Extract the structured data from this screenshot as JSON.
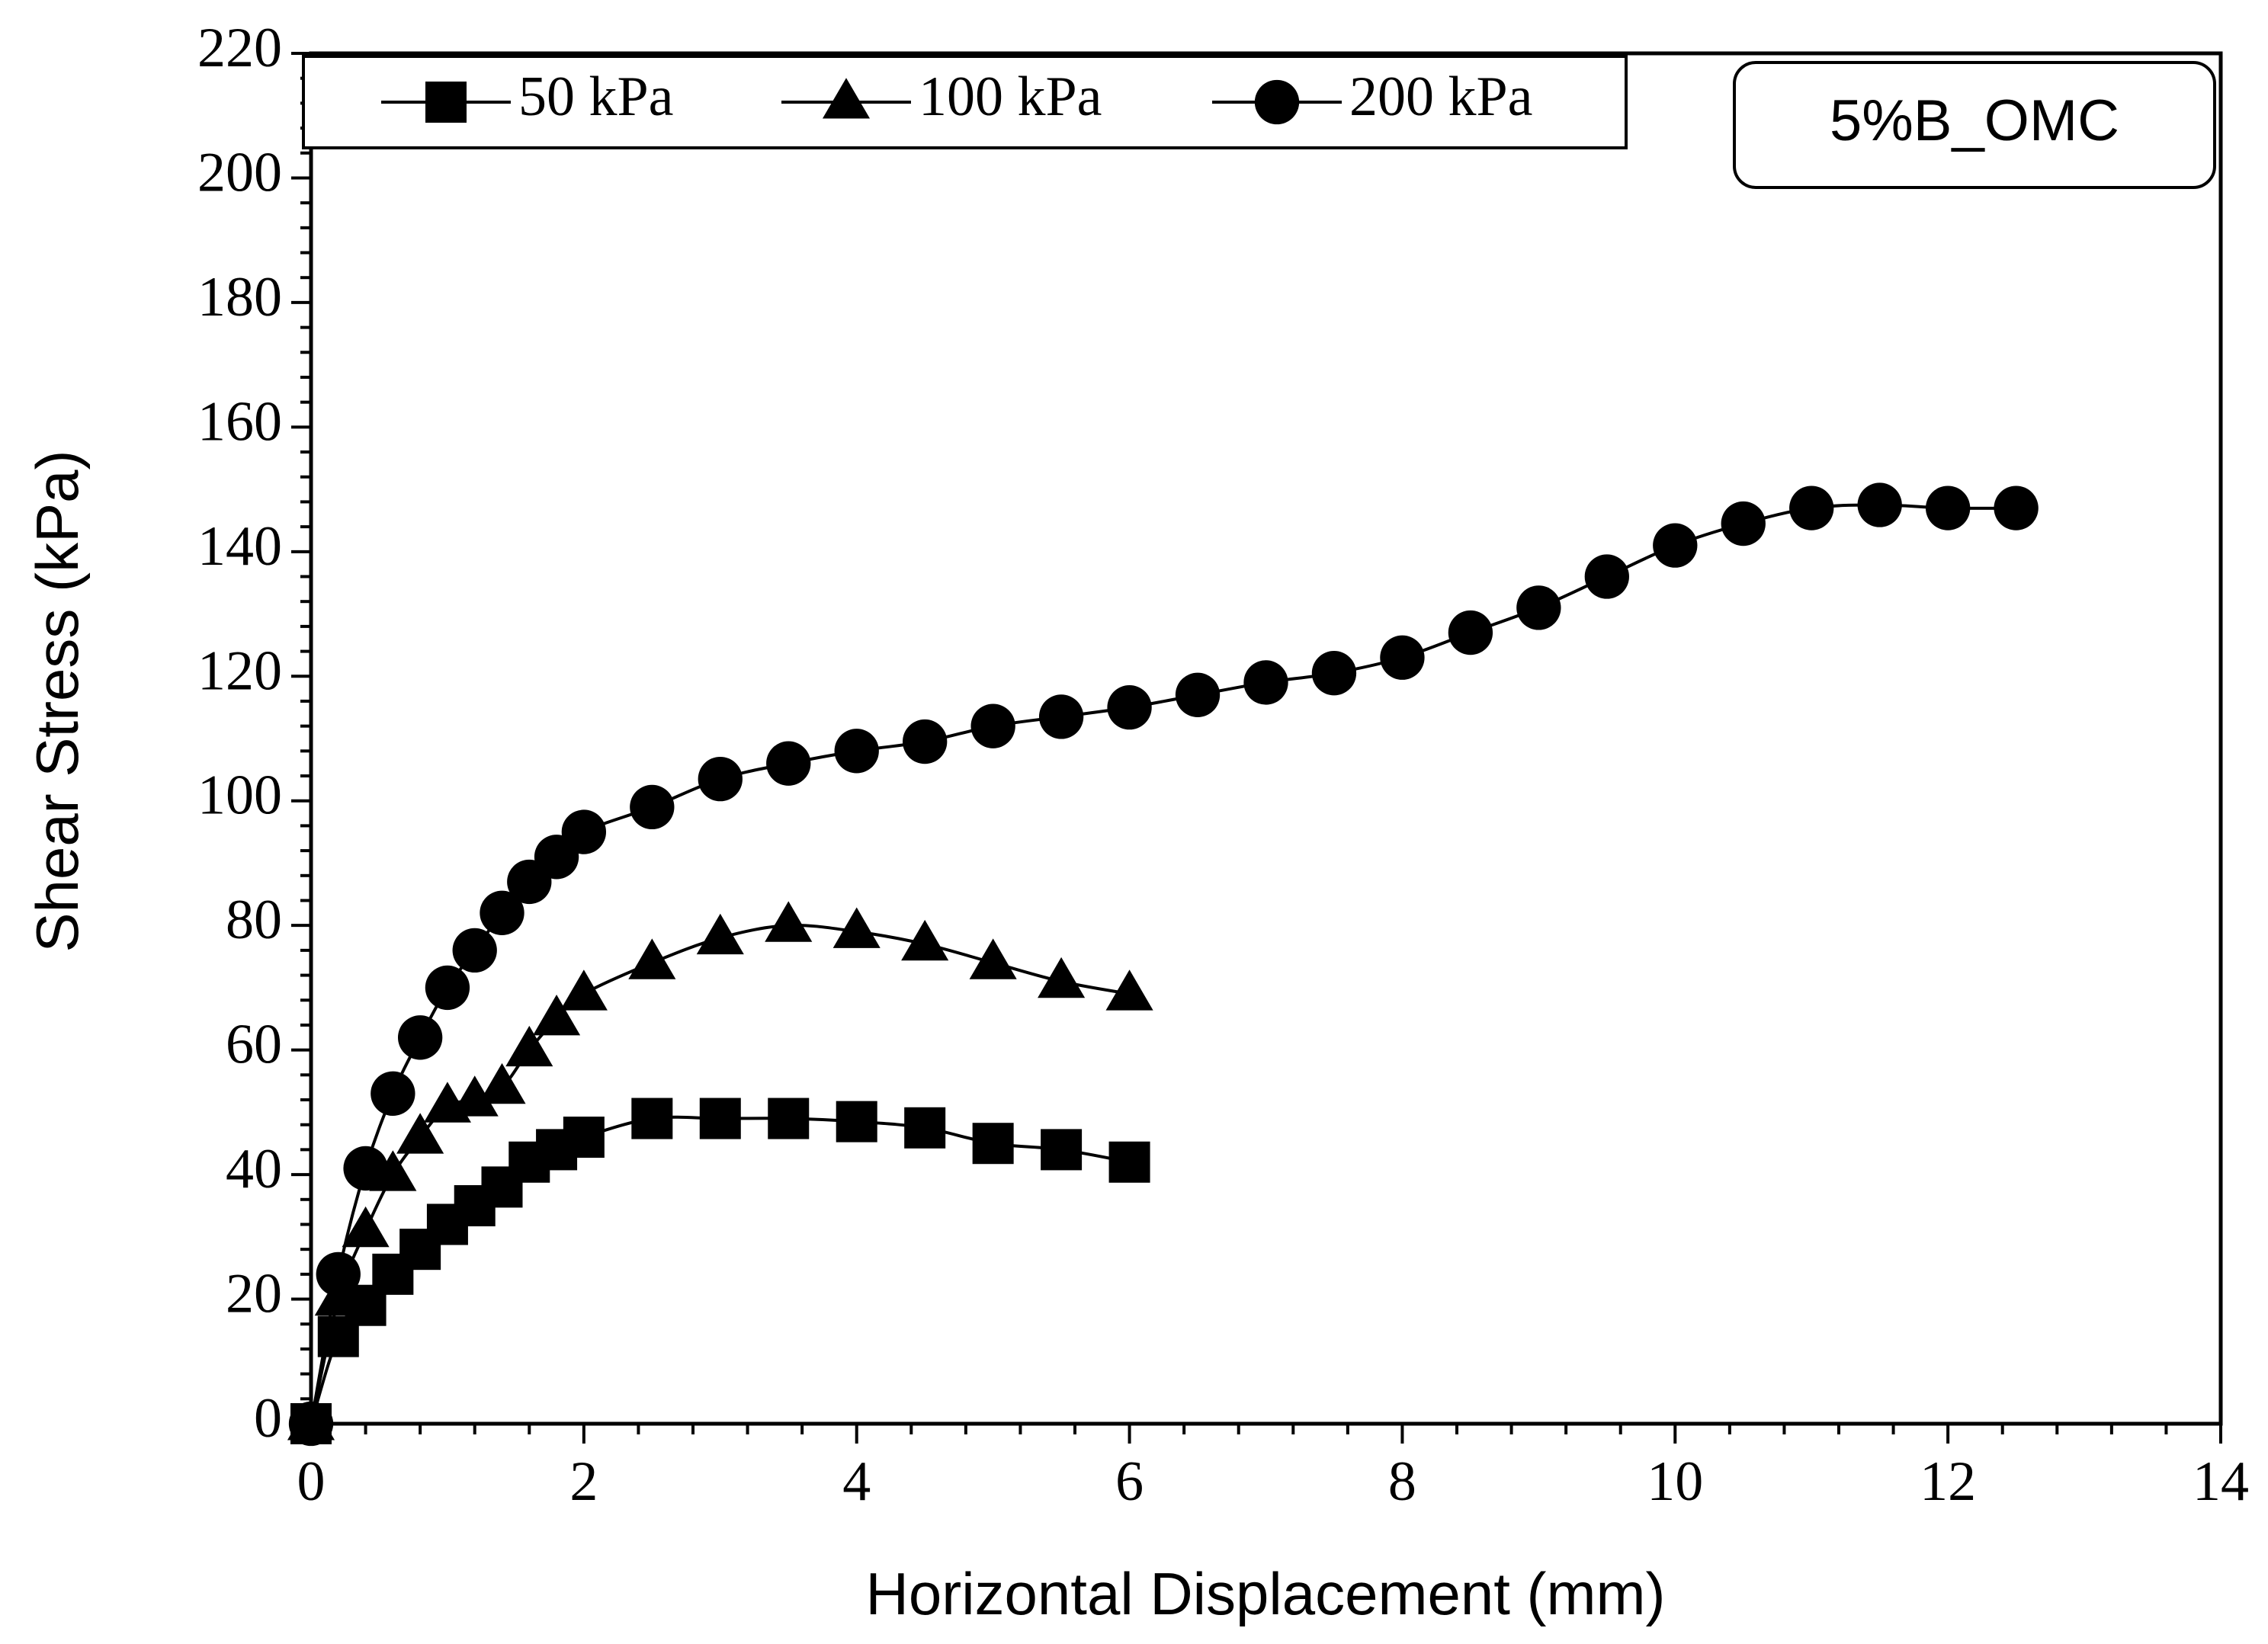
{
  "chart_data": {
    "type": "line",
    "title": "",
    "annotation": "5%B_OMC",
    "xlabel": "Horizontal Displacement (mm)",
    "ylabel": "Shear Stress (kPa)",
    "xlim": [
      0,
      14
    ],
    "ylim": [
      0,
      220
    ],
    "xticks": [
      0,
      2,
      4,
      6,
      8,
      10,
      12,
      14
    ],
    "yticks": [
      0,
      20,
      40,
      60,
      80,
      100,
      120,
      140,
      160,
      180,
      200,
      220
    ],
    "grid": false,
    "legend_position": "top",
    "series": [
      {
        "name": "50 kPa",
        "marker": "square",
        "color": "#000000",
        "x": [
          0,
          0.2,
          0.4,
          0.6,
          0.8,
          1.0,
          1.2,
          1.4,
          1.6,
          1.8,
          2.0,
          2.5,
          3.0,
          3.5,
          4.0,
          4.5,
          5.0,
          5.5,
          6.0
        ],
        "y": [
          0,
          14,
          19,
          24,
          28,
          32,
          35,
          38,
          42,
          44,
          46,
          49,
          49,
          49,
          48.5,
          47.5,
          45,
          44,
          42
        ]
      },
      {
        "name": "100 kPa",
        "marker": "triangle",
        "color": "#000000",
        "x": [
          0,
          0.2,
          0.4,
          0.6,
          0.8,
          1.0,
          1.2,
          1.4,
          1.6,
          1.8,
          2.0,
          2.5,
          3.0,
          3.5,
          4.0,
          4.5,
          5.0,
          5.5,
          6.0
        ],
        "y": [
          0,
          20,
          31,
          40,
          46,
          51,
          52,
          54,
          60,
          65,
          69,
          74,
          78,
          80,
          79,
          77,
          74,
          71,
          69
        ]
      },
      {
        "name": "200 kPa",
        "marker": "circle",
        "color": "#000000",
        "x": [
          0,
          0.2,
          0.4,
          0.6,
          0.8,
          1.0,
          1.2,
          1.4,
          1.6,
          1.8,
          2.0,
          2.5,
          3.0,
          3.5,
          4.0,
          4.5,
          5.0,
          5.5,
          6.0,
          6.5,
          7.0,
          7.5,
          8.0,
          8.5,
          9.0,
          9.5,
          10.0,
          10.5,
          11.0,
          11.5,
          12.0,
          12.5
        ],
        "y": [
          0,
          24,
          41,
          53,
          62,
          70,
          76,
          82,
          87,
          91,
          95,
          99,
          103.5,
          106,
          108,
          109.5,
          112,
          113.5,
          115,
          117,
          119,
          120.5,
          123,
          127,
          131,
          136,
          141,
          144.5,
          147,
          147.5,
          147,
          147
        ]
      }
    ]
  }
}
